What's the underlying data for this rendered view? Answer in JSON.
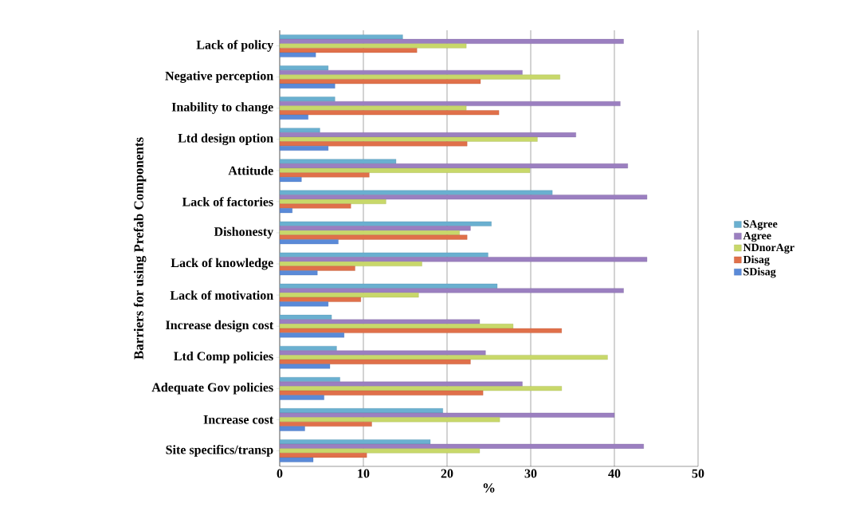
{
  "chart_data": {
    "type": "bar",
    "orientation": "horizontal",
    "xlabel": "%",
    "ylabel": "Barriers for using Prefab Components",
    "categories": [
      "Lack of policy",
      "Negative perception",
      "Inability to change",
      "Ltd design option",
      "Attitude",
      "Lack of factories",
      "Dishonesty",
      "Lack of knowledge",
      "Lack of motivation",
      "Increase design cost",
      "Ltd Comp policies",
      "Adequate Gov policies",
      "Increase cost",
      "Site specifics/transp"
    ],
    "series": [
      {
        "name": "SAgree",
        "color": "#6ab0d0",
        "values": [
          14.7,
          5.8,
          6.6,
          4.8,
          13.9,
          32.6,
          25.3,
          24.9,
          26.0,
          6.2,
          6.8,
          7.2,
          19.5,
          18.0
        ]
      },
      {
        "name": "Agree",
        "color": "#9b7fc0",
        "values": [
          41.1,
          29.0,
          40.7,
          35.4,
          41.6,
          43.9,
          22.8,
          43.9,
          41.1,
          23.9,
          24.6,
          29.0,
          40.0,
          43.5
        ]
      },
      {
        "name": "NDnorAgr",
        "color": "#c8d86a",
        "values": [
          22.3,
          33.5,
          22.3,
          30.8,
          29.9,
          12.7,
          21.5,
          17.0,
          16.6,
          27.9,
          39.2,
          33.7,
          26.3,
          23.9
        ]
      },
      {
        "name": "Disag",
        "color": "#e0704a",
        "values": [
          16.4,
          24.0,
          26.2,
          22.4,
          10.7,
          8.5,
          22.4,
          9.0,
          9.7,
          33.7,
          22.8,
          24.3,
          11.0,
          10.4
        ]
      },
      {
        "name": "SDisag",
        "color": "#5a8ad8",
        "values": [
          4.3,
          6.6,
          3.4,
          5.8,
          2.6,
          1.5,
          7.0,
          4.5,
          5.8,
          7.7,
          6.0,
          5.3,
          3.0,
          4.0
        ]
      }
    ],
    "xlim": [
      0,
      50
    ],
    "xticks": [
      0,
      10,
      20,
      30,
      40,
      50
    ],
    "grid": "x",
    "legend": "right"
  }
}
